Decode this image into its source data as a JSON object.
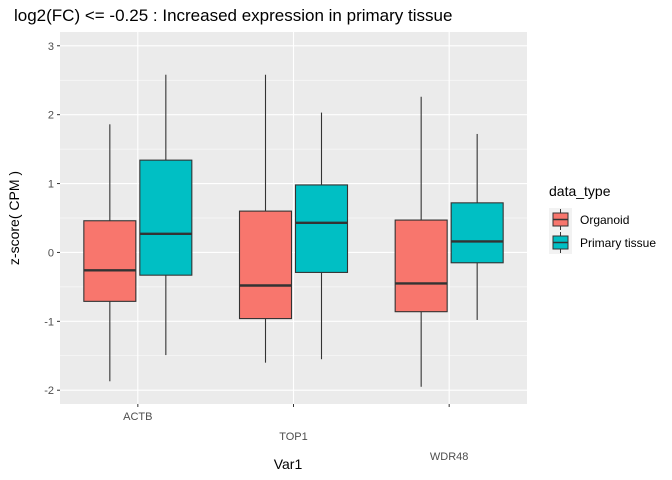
{
  "chart_data": {
    "type": "boxplot",
    "title": "log2(FC) <= -0.25 : Increased expression in primary tissue",
    "xlabel": "Var1",
    "ylabel": "z-score( CPM )",
    "categories": [
      "ACTB",
      "TOP1",
      "WDR48"
    ],
    "ylim": [
      -2.2,
      3.2
    ],
    "yticks": [
      -2,
      -1,
      0,
      1,
      2,
      3
    ],
    "ytick_labels": [
      "-2",
      "-1",
      "0",
      "1",
      "2",
      "3"
    ],
    "grid": true,
    "legend": {
      "title": "data_type",
      "position": "right"
    },
    "series": [
      {
        "name": "Organoid",
        "color": "#F8766D",
        "boxes": [
          {
            "category": "ACTB",
            "min": -1.87,
            "q1": -0.71,
            "median": -0.26,
            "q3": 0.46,
            "max": 1.86
          },
          {
            "category": "TOP1",
            "min": -1.6,
            "q1": -0.96,
            "median": -0.48,
            "q3": 0.6,
            "max": 2.58
          },
          {
            "category": "WDR48",
            "min": -1.95,
            "q1": -0.86,
            "median": -0.45,
            "q3": 0.47,
            "max": 2.26
          }
        ]
      },
      {
        "name": "Primary tissue",
        "color": "#00BFC4",
        "boxes": [
          {
            "category": "ACTB",
            "min": -1.49,
            "q1": -0.33,
            "median": 0.27,
            "q3": 1.34,
            "max": 2.58
          },
          {
            "category": "TOP1",
            "min": -1.55,
            "q1": -0.29,
            "median": 0.43,
            "q3": 0.98,
            "max": 2.03
          },
          {
            "category": "WDR48",
            "min": -0.98,
            "q1": -0.15,
            "median": 0.16,
            "q3": 0.72,
            "max": 1.72
          }
        ]
      }
    ]
  }
}
